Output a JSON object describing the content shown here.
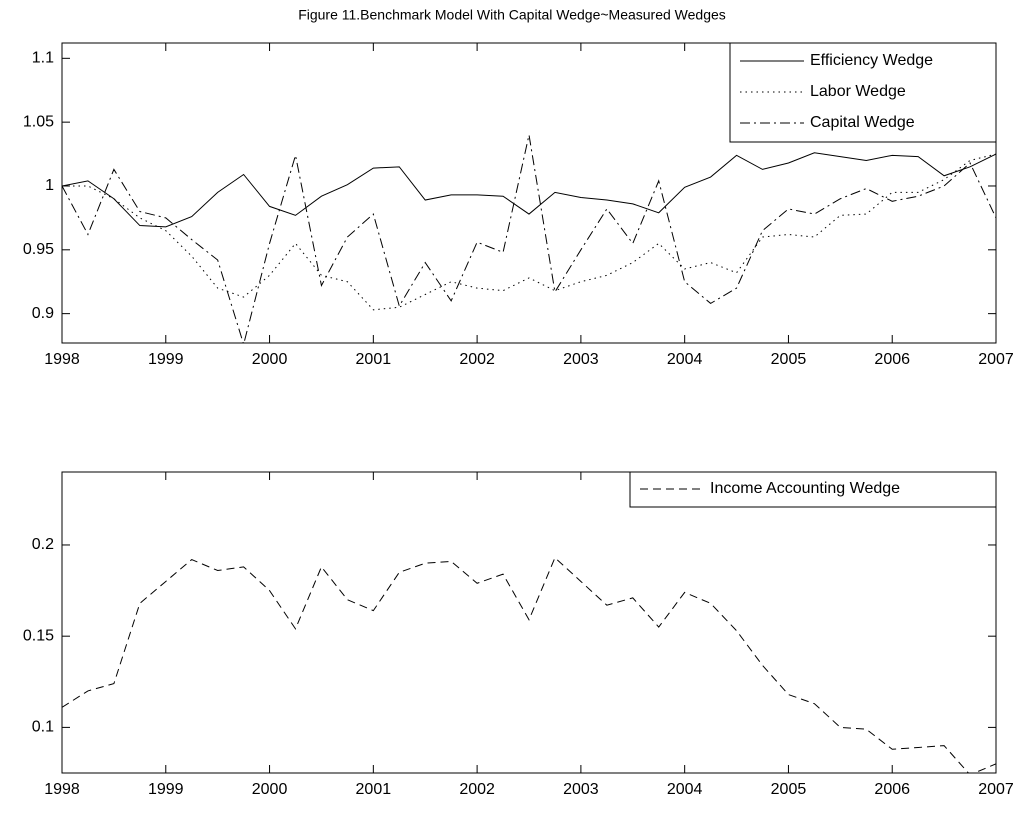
{
  "chart_data": [
    {
      "type": "line",
      "title": "Figure 11.Benchmark Model With Capital Wedge~Measured Wedges",
      "x": [
        1998,
        1998.25,
        1998.5,
        1998.75,
        1999,
        1999.25,
        1999.5,
        1999.75,
        2000,
        2000.25,
        2000.5,
        2000.75,
        2001,
        2001.25,
        2001.5,
        2001.75,
        2002,
        2002.25,
        2002.5,
        2002.75,
        2003,
        2003.25,
        2003.5,
        2003.75,
        2004,
        2004.25,
        2004.5,
        2004.75,
        2005,
        2005.25,
        2005.5,
        2005.75,
        2006,
        2006.25,
        2006.5,
        2006.75,
        2007
      ],
      "series": [
        {
          "name": "Efficiency Wedge",
          "color": "#000000",
          "style": "solid",
          "values": [
            1.0,
            1.004,
            0.99,
            0.969,
            0.968,
            0.976,
            0.995,
            1.009,
            0.984,
            0.977,
            0.992,
            1.001,
            1.014,
            1.015,
            0.989,
            0.993,
            0.993,
            0.992,
            0.978,
            0.995,
            0.991,
            0.989,
            0.986,
            0.979,
            0.999,
            1.007,
            1.024,
            1.013,
            1.018,
            1.026,
            1.023,
            1.02,
            1.024,
            1.023,
            1.008,
            1.015,
            1.025
          ]
        },
        {
          "name": "Labor Wedge",
          "color": "#000000",
          "style": "dotted",
          "values": [
            1.0,
            1.0,
            0.99,
            0.975,
            0.965,
            0.945,
            0.92,
            0.913,
            0.93,
            0.955,
            0.93,
            0.925,
            0.903,
            0.905,
            0.915,
            0.925,
            0.92,
            0.918,
            0.928,
            0.918,
            0.925,
            0.93,
            0.94,
            0.955,
            0.935,
            0.94,
            0.932,
            0.96,
            0.962,
            0.96,
            0.977,
            0.978,
            0.995,
            0.995,
            1.005,
            1.02,
            1.025
          ]
        },
        {
          "name": "Capital Wedge",
          "color": "#000000",
          "style": "dashdot",
          "values": [
            1.0,
            0.962,
            1.013,
            0.98,
            0.975,
            0.958,
            0.942,
            0.876,
            0.955,
            1.024,
            0.922,
            0.96,
            0.978,
            0.906,
            0.94,
            0.91,
            0.956,
            0.948,
            1.04,
            0.917,
            0.95,
            0.982,
            0.955,
            1.004,
            0.925,
            0.908,
            0.92,
            0.965,
            0.982,
            0.978,
            0.99,
            0.998,
            0.988,
            0.992,
            1.0,
            1.018,
            0.975
          ]
        }
      ],
      "xlim": [
        1998,
        2007
      ],
      "xticks": [
        1998,
        1999,
        2000,
        2001,
        2002,
        2003,
        2004,
        2005,
        2006,
        2007
      ],
      "ylim": [
        0.877,
        1.112
      ],
      "yticks": [
        0.9,
        0.95,
        1,
        1.05,
        1.1
      ],
      "legend": "top-right"
    },
    {
      "type": "line",
      "x": [
        1998,
        1998.25,
        1998.5,
        1998.75,
        1999,
        1999.25,
        1999.5,
        1999.75,
        2000,
        2000.25,
        2000.5,
        2000.75,
        2001,
        2001.25,
        2001.5,
        2001.75,
        2002,
        2002.25,
        2002.5,
        2002.75,
        2003,
        2003.25,
        2003.5,
        2003.75,
        2004,
        2004.25,
        2004.5,
        2004.75,
        2005,
        2005.25,
        2005.5,
        2005.75,
        2006,
        2006.25,
        2006.5,
        2006.75,
        2007
      ],
      "series": [
        {
          "name": "Income Accounting Wedge",
          "color": "#000000",
          "style": "dashed",
          "values": [
            0.111,
            0.12,
            0.124,
            0.168,
            0.18,
            0.192,
            0.186,
            0.188,
            0.175,
            0.154,
            0.188,
            0.17,
            0.164,
            0.185,
            0.19,
            0.191,
            0.179,
            0.184,
            0.159,
            0.193,
            0.18,
            0.167,
            0.171,
            0.155,
            0.174,
            0.168,
            0.153,
            0.134,
            0.118,
            0.113,
            0.1,
            0.099,
            0.088,
            0.089,
            0.09,
            0.074,
            0.08
          ]
        }
      ],
      "xlim": [
        1998,
        2007
      ],
      "xticks": [
        1998,
        1999,
        2000,
        2001,
        2002,
        2003,
        2004,
        2005,
        2006,
        2007
      ],
      "ylim": [
        0.075,
        0.24
      ],
      "yticks": [
        0.1,
        0.15,
        0.2
      ],
      "legend": "top-right"
    }
  ]
}
